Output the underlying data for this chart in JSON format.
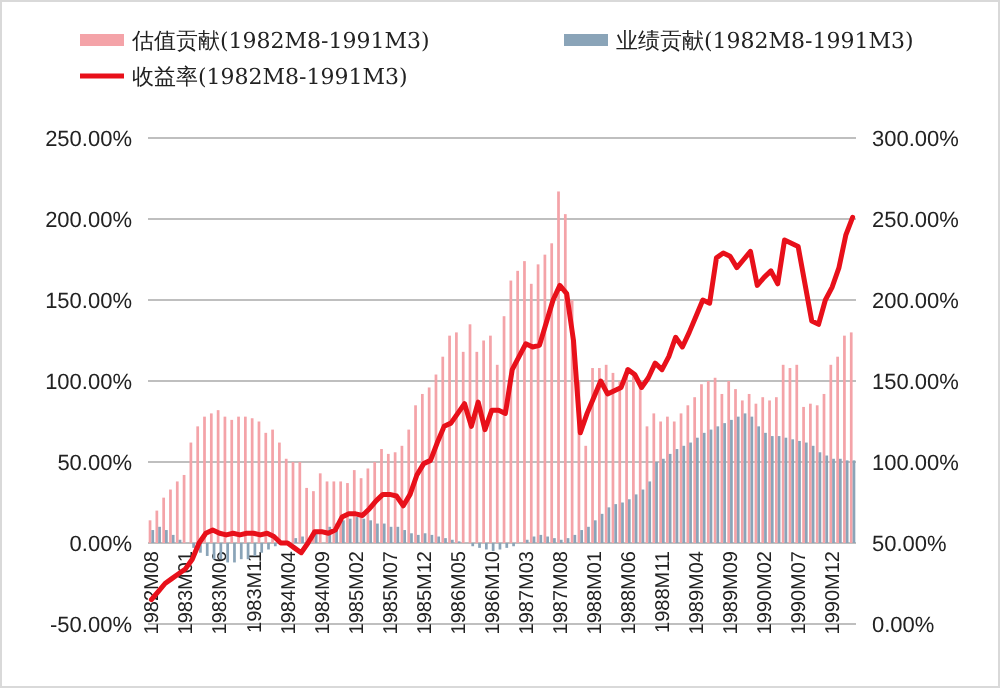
{
  "chart_data": {
    "type": "bar",
    "categories": [
      "1982M08",
      null,
      null,
      null,
      null,
      "1983M01",
      null,
      null,
      null,
      null,
      "1983M06",
      null,
      null,
      null,
      null,
      "1983M11",
      null,
      null,
      null,
      null,
      "1984M04",
      null,
      null,
      null,
      null,
      "1984M09",
      null,
      null,
      null,
      null,
      "1985M02",
      null,
      null,
      null,
      null,
      "1985M07",
      null,
      null,
      null,
      null,
      "1985M12",
      null,
      null,
      null,
      null,
      "1986M05",
      null,
      null,
      null,
      null,
      "1986M10",
      null,
      null,
      null,
      null,
      "1987M03",
      null,
      null,
      null,
      null,
      "1987M08",
      null,
      null,
      null,
      null,
      "1988M01",
      null,
      null,
      null,
      null,
      "1988M06",
      null,
      null,
      null,
      null,
      "1988M11",
      null,
      null,
      null,
      null,
      "1989M04",
      null,
      null,
      null,
      null,
      "1989M09",
      null,
      null,
      null,
      null,
      "1990M02",
      null,
      null,
      null,
      null,
      "1990M07",
      null,
      null,
      null,
      null,
      "1990M12",
      null,
      null,
      null
    ],
    "series": [
      {
        "name": "估值贡献(1982M8-1991M3)",
        "color": "#f4a3a8",
        "values": [
          14,
          20,
          28,
          33,
          38,
          42,
          62,
          72,
          78,
          80,
          82,
          78,
          76,
          78,
          78,
          77,
          75,
          68,
          70,
          62,
          52,
          50,
          50,
          34,
          32,
          43,
          38,
          38,
          38,
          37,
          45,
          40,
          46,
          50,
          58,
          55,
          56,
          60,
          70,
          85,
          92,
          96,
          104,
          115,
          128,
          130,
          118,
          135,
          118,
          125,
          128,
          110,
          140,
          162,
          168,
          174,
          160,
          172,
          178,
          185,
          217,
          203,
          150,
          100,
          60,
          108,
          108,
          110,
          105,
          100,
          108,
          104,
          100,
          72,
          80,
          75,
          78,
          75,
          80,
          85,
          90,
          98,
          100,
          102,
          92,
          100,
          95,
          88,
          92,
          86,
          90,
          88,
          90,
          110,
          108,
          110,
          84,
          86,
          85,
          92,
          110,
          115,
          128,
          130
        ]
      },
      {
        "name": "业绩贡献(1982M8-1991M3)",
        "color": "#8aa4b8",
        "values": [
          8,
          10,
          8,
          5,
          2,
          0,
          -3,
          -6,
          -8,
          -10,
          -10,
          -12,
          -12,
          -10,
          -10,
          -8,
          -6,
          -4,
          -2,
          0,
          null,
          3,
          4,
          null,
          6,
          null,
          10,
          12,
          14,
          15,
          16,
          15,
          14,
          12,
          12,
          10,
          10,
          8,
          6,
          5,
          6,
          5,
          4,
          3,
          2,
          1,
          0,
          -2,
          -3,
          -4,
          -5,
          -4,
          -3,
          -2,
          0,
          2,
          4,
          5,
          4,
          3,
          2,
          3,
          5,
          8,
          10,
          14,
          18,
          22,
          24,
          25,
          27,
          30,
          33,
          38,
          50,
          52,
          55,
          58,
          60,
          62,
          65,
          68,
          70,
          72,
          74,
          76,
          78,
          80,
          78,
          72,
          68,
          66,
          66,
          65,
          64,
          63,
          62,
          60,
          56,
          54,
          52,
          52,
          51,
          51
        ]
      },
      {
        "name": "收益率(1982M8-1991M3)",
        "type": "line",
        "axis": "y2",
        "color": "#e8101a",
        "values": [
          15,
          20,
          25,
          28,
          31,
          34,
          40,
          50,
          56,
          58,
          56,
          55,
          56,
          55,
          56,
          56,
          55,
          56,
          54,
          50,
          50,
          47,
          44,
          50,
          57,
          57,
          56,
          58,
          66,
          68,
          68,
          67,
          71,
          76,
          80,
          80,
          79,
          73,
          80,
          92,
          99,
          101,
          112,
          122,
          124,
          130,
          136,
          122,
          137,
          120,
          132,
          132,
          130,
          157,
          165,
          173,
          171,
          172,
          186,
          200,
          209,
          204,
          175,
          118,
          130,
          140,
          150,
          142,
          144,
          146,
          157,
          154,
          146,
          152,
          161,
          157,
          165,
          177,
          171,
          180,
          190,
          200,
          198,
          226,
          229,
          227,
          220,
          225,
          230,
          209,
          214,
          218,
          210,
          237,
          235,
          233,
          210,
          187,
          185,
          200,
          208,
          220,
          240,
          251
        ]
      }
    ],
    "ylim": [
      -50,
      250
    ],
    "yticks": [
      {
        "value": -50,
        "label": "-50.00%"
      },
      {
        "value": 0,
        "label": "0.00%"
      },
      {
        "value": 50,
        "label": "50.00%"
      },
      {
        "value": 100,
        "label": "100.00%"
      },
      {
        "value": 150,
        "label": "150.00%"
      },
      {
        "value": 200,
        "label": "200.00%"
      },
      {
        "value": 250,
        "label": "250.00%"
      }
    ],
    "y2lim": [
      0,
      300
    ],
    "y2ticks": [
      {
        "value": 0,
        "label": "0.00%"
      },
      {
        "value": 50,
        "label": "50.00%"
      },
      {
        "value": 100,
        "label": "100.00%"
      },
      {
        "value": 150,
        "label": "150.00%"
      },
      {
        "value": 200,
        "label": "200.00%"
      },
      {
        "value": 250,
        "label": "250.00%"
      },
      {
        "value": 300,
        "label": "300.00%"
      }
    ],
    "grid": "y",
    "legend": "top"
  }
}
